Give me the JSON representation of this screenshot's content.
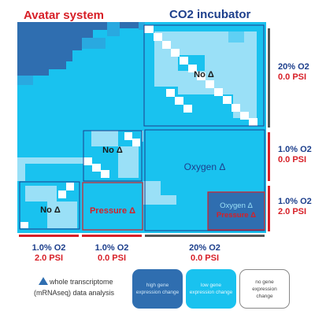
{
  "titles": {
    "avatar": "Avatar system",
    "incubator": "CO2 incubator"
  },
  "colors": {
    "red": "#d71f27",
    "blue_text": "#1d3f8c",
    "dark_blue": "#2f6eb0",
    "light_blue": "#19c2ef",
    "pale_blue": "#9ae0f7",
    "gray": "#555555"
  },
  "region_labels": {
    "no_delta_top": "No Δ",
    "no_delta_mid": "No Δ",
    "no_delta_bottom": "No Δ",
    "oxygen_delta": "Oxygen Δ",
    "pressure_delta": "Pressure Δ",
    "oxygen_pressure_line1": "Oxygen Δ",
    "oxygen_pressure_line2": "Pressure Δ"
  },
  "right_labels": [
    {
      "o2": "20% O2",
      "psi": "0.0 PSI"
    },
    {
      "o2": "1.0% O2",
      "psi": "0.0 PSI"
    },
    {
      "o2": "1.0% O2",
      "psi": "2.0 PSI"
    }
  ],
  "bottom_labels": [
    {
      "o2": "1.0% O2",
      "psi": "2.0 PSI"
    },
    {
      "o2": "1.0% O2",
      "psi": "0.0 PSI"
    },
    {
      "o2": "20% O2",
      "psi": "0.0 PSI"
    }
  ],
  "legend": {
    "caption_line1": "whole transcriptome",
    "caption_line2": "(mRNAseq) data analysis",
    "high": "high gene expression change",
    "low": "low gene expression change",
    "none": "no gene expression change"
  }
}
